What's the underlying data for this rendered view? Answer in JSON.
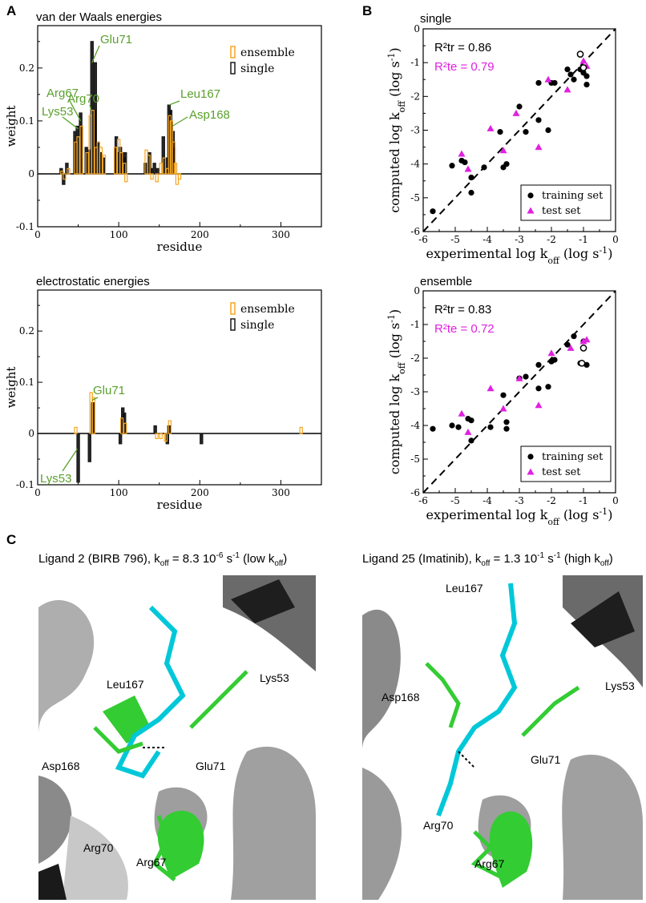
{
  "panel_letters": {
    "a": "A",
    "b": "B",
    "c": "C"
  },
  "colors": {
    "ensemble": "#f5a623",
    "single": "#1a1a1a",
    "label_green": "#5aa02c",
    "test_magenta": "#e020e0"
  },
  "panel_a": [
    {
      "id": "vdw",
      "title": "van der Waals energies",
      "xlabel": "residue",
      "ylabel": "weight",
      "xticks": [
        "0",
        "100",
        "200",
        "300"
      ],
      "yticks": [
        "-0.1",
        "0",
        "0.1",
        "0.2"
      ],
      "legend": [
        "ensemble",
        "single"
      ],
      "annotations": [
        "Glu71",
        "Arg67",
        "Arg70",
        "Lys53",
        "Leu167",
        "Asp168"
      ]
    },
    {
      "id": "elec",
      "title": "electrostatic energies",
      "xlabel": "residue",
      "ylabel": "weight",
      "xticks": [
        "0",
        "100",
        "200",
        "300"
      ],
      "yticks": [
        "-0.1",
        "0",
        "0.1",
        "0.2"
      ],
      "legend": [
        "ensemble",
        "single"
      ],
      "annotations": [
        "Glu71",
        "Lys53"
      ]
    }
  ],
  "panel_b": [
    {
      "id": "single",
      "title": "single",
      "xlabel": "experimental log k",
      "ylabel": "computed log k",
      "sub": "off",
      "unit_prefix": "(log s",
      "unit_sup": "-1",
      "unit_suffix": ")",
      "r2tr": "R²tr = 0.86",
      "r2te": "R²te = 0.79",
      "xticks": [
        "-6",
        "-5",
        "-4",
        "-3",
        "-2",
        "-1",
        "0"
      ],
      "yticks": [
        "-6",
        "-5",
        "-4",
        "-3",
        "-2",
        "-1",
        "0"
      ],
      "legend": [
        "training set",
        "test set"
      ]
    },
    {
      "id": "ensemble",
      "title": "ensemble",
      "xlabel": "experimental log k",
      "ylabel": "computed log k",
      "sub": "off",
      "unit_prefix": "(log s",
      "unit_sup": "-1",
      "unit_suffix": ")",
      "r2tr": "R²tr = 0.83",
      "r2te": "R²te = 0.72",
      "xticks": [
        "-6",
        "-5",
        "-4",
        "-3",
        "-2",
        "-1",
        "0"
      ],
      "yticks": [
        "-6",
        "-5",
        "-4",
        "-3",
        "-2",
        "-1",
        "0"
      ],
      "legend": [
        "training set",
        "test set"
      ]
    }
  ],
  "chart_data": [
    {
      "type": "bar",
      "title": "van der Waals energies",
      "xlabel": "residue",
      "ylabel": "weight",
      "xlim": [
        0,
        350
      ],
      "ylim": [
        -0.1,
        0.28
      ],
      "series": [
        {
          "name": "single",
          "x": [
            29,
            32,
            36,
            46,
            49,
            53,
            60,
            64,
            67,
            70,
            71,
            74,
            77,
            81,
            97,
            99,
            102,
            104,
            106,
            108,
            133,
            138,
            140,
            144,
            148,
            155,
            159,
            162,
            164,
            167,
            168
          ],
          "values": [
            0.01,
            -0.02,
            0.02,
            0.08,
            0.09,
            0.115,
            0.05,
            0.045,
            0.25,
            0.12,
            0.21,
            0.06,
            0.04,
            0.03,
            0.07,
            0.04,
            0.05,
            0.04,
            0.03,
            0.04,
            0.02,
            0.04,
            0.01,
            0.02,
            0.01,
            0.07,
            0.03,
            0.13,
            0.12,
            0.08,
            0.05
          ]
        },
        {
          "name": "ensemble",
          "x": [
            30,
            33,
            38,
            47,
            50,
            54,
            61,
            65,
            68,
            72,
            75,
            78,
            82,
            96,
            100,
            103,
            107,
            109,
            134,
            137,
            141,
            147,
            152,
            156,
            160,
            163,
            165,
            168,
            170,
            172,
            175
          ],
          "values": [
            0.005,
            -0.01,
            0.01,
            0.06,
            0.07,
            0.09,
            0.04,
            0.11,
            0.12,
            0.05,
            0.06,
            0.05,
            0.035,
            0.05,
            0.065,
            0.04,
            0.02,
            -0.015,
            0.045,
            0.035,
            -0.01,
            -0.015,
            0.02,
            0.03,
            0.01,
            0.11,
            0.1,
            0.06,
            0.02,
            -0.02,
            -0.01
          ]
        }
      ],
      "legend": [
        "ensemble",
        "single"
      ]
    },
    {
      "type": "bar",
      "title": "electrostatic energies",
      "xlabel": "residue",
      "ylabel": "weight",
      "xlim": [
        0,
        350
      ],
      "ylim": [
        -0.1,
        0.28
      ],
      "series": [
        {
          "name": "single",
          "x": [
            50,
            64,
            68,
            102,
            105,
            107,
            145,
            160,
            162,
            202
          ],
          "values": [
            -0.095,
            -0.055,
            0.06,
            -0.02,
            0.05,
            0.04,
            0.015,
            -0.02,
            0.015,
            -0.02
          ]
        },
        {
          "name": "ensemble",
          "x": [
            47,
            66,
            69,
            104,
            108,
            147,
            152,
            158,
            163,
            325
          ],
          "values": [
            0.012,
            0.08,
            0.07,
            0.03,
            0.02,
            -0.01,
            -0.01,
            -0.015,
            0.025,
            0.012
          ]
        }
      ],
      "legend": [
        "ensemble",
        "single"
      ]
    },
    {
      "type": "scatter",
      "title": "single",
      "xlabel": "experimental log koff (log s-1)",
      "ylabel": "computed log koff (log s-1)",
      "xlim": [
        -6,
        0
      ],
      "ylim": [
        -6,
        0
      ],
      "series": [
        {
          "name": "training set",
          "x": [
            -5.7,
            -5.1,
            -4.8,
            -4.7,
            -4.5,
            -4.5,
            -4.1,
            -3.6,
            -3.5,
            -3.4,
            -3.0,
            -2.8,
            -2.4,
            -2.4,
            -2.1,
            -2.0,
            -1.9,
            -1.5,
            -1.4,
            -1.3,
            -1.1,
            -1.0,
            -0.9,
            -0.9
          ],
          "y": [
            -5.4,
            -4.05,
            -3.9,
            -3.95,
            -4.85,
            -4.4,
            -4.1,
            -3.05,
            -4.1,
            -4.0,
            -2.3,
            -3.05,
            -1.6,
            -2.7,
            -3.0,
            -1.6,
            -1.6,
            -1.2,
            -1.35,
            -1.5,
            -1.2,
            -1.3,
            -1.4,
            -1.65
          ]
        },
        {
          "name": "test set",
          "x": [
            -4.8,
            -4.6,
            -3.9,
            -3.5,
            -3.1,
            -2.4,
            -2.1,
            -1.5,
            -1.0,
            -0.9
          ],
          "y": [
            -3.7,
            -4.15,
            -2.95,
            -3.6,
            -2.5,
            -3.5,
            -1.5,
            -1.8,
            -0.95,
            -1.1
          ]
        }
      ],
      "open_circles": {
        "x": [
          -1.1,
          -1.0
        ],
        "y": [
          -0.75,
          -1.15
        ]
      },
      "annotations": [
        "R²tr = 0.86",
        "R²te = 0.79"
      ]
    },
    {
      "type": "scatter",
      "title": "ensemble",
      "xlabel": "experimental log koff (log s-1)",
      "ylabel": "computed log koff (log s-1)",
      "xlim": [
        -6,
        0
      ],
      "ylim": [
        -6,
        0
      ],
      "series": [
        {
          "name": "training set",
          "x": [
            -5.7,
            -5.1,
            -4.9,
            -4.6,
            -4.5,
            -4.5,
            -3.9,
            -3.5,
            -3.4,
            -3.4,
            -3.0,
            -2.8,
            -2.4,
            -2.4,
            -2.1,
            -2.0,
            -1.9,
            -1.5,
            -1.3,
            -1.1,
            -1.0,
            -0.9
          ],
          "y": [
            -4.1,
            -4.0,
            -4.05,
            -3.8,
            -4.45,
            -3.85,
            -4.05,
            -3.1,
            -4.1,
            -3.9,
            -2.6,
            -2.55,
            -2.2,
            -2.9,
            -2.85,
            -2.1,
            -2.05,
            -1.6,
            -1.35,
            -2.15,
            -1.5,
            -2.2
          ]
        },
        {
          "name": "test set",
          "x": [
            -4.8,
            -4.6,
            -3.9,
            -3.5,
            -3.0,
            -2.4,
            -2.0,
            -1.4,
            -1.0,
            -0.9
          ],
          "y": [
            -3.65,
            -4.2,
            -2.9,
            -3.5,
            -2.6,
            -3.4,
            -1.85,
            -1.7,
            -1.5,
            -1.45
          ]
        }
      ],
      "open_circles": {
        "x": [
          -1.0,
          -1.05
        ],
        "y": [
          -1.7,
          -2.15
        ]
      },
      "annotations": [
        "R²tr = 0.83",
        "R²te = 0.72"
      ]
    }
  ],
  "panel_c": {
    "left": {
      "caption_pre": "Ligand 2 (BIRB 796), k",
      "caption_sub": "off",
      "caption_mid": " = 8.3 10",
      "caption_sup": "-6",
      "caption_mid2": " s",
      "caption_sup2": "-1",
      "caption_post": " (low k",
      "caption_sub2": "off",
      "caption_end": ")",
      "labels": {
        "leu167": "Leu167",
        "lys53": "Lys53",
        "asp168": "Asp168",
        "glu71": "Glu71",
        "arg70": "Arg70",
        "arg67": "Arg67"
      }
    },
    "right": {
      "caption_pre": "Ligand 25 (Imatinib), k",
      "caption_sub": "off",
      "caption_mid": " = 1.3 10",
      "caption_sup": "-1",
      "caption_mid2": " s",
      "caption_sup2": "-1",
      "caption_post": " (high k",
      "caption_sub2": "off",
      "caption_end": ")",
      "labels": {
        "leu167": "Leu167",
        "lys53": "Lys53",
        "asp168": "Asp168",
        "glu71": "Glu71",
        "arg70": "Arg70",
        "arg67": "Arg67"
      }
    }
  }
}
